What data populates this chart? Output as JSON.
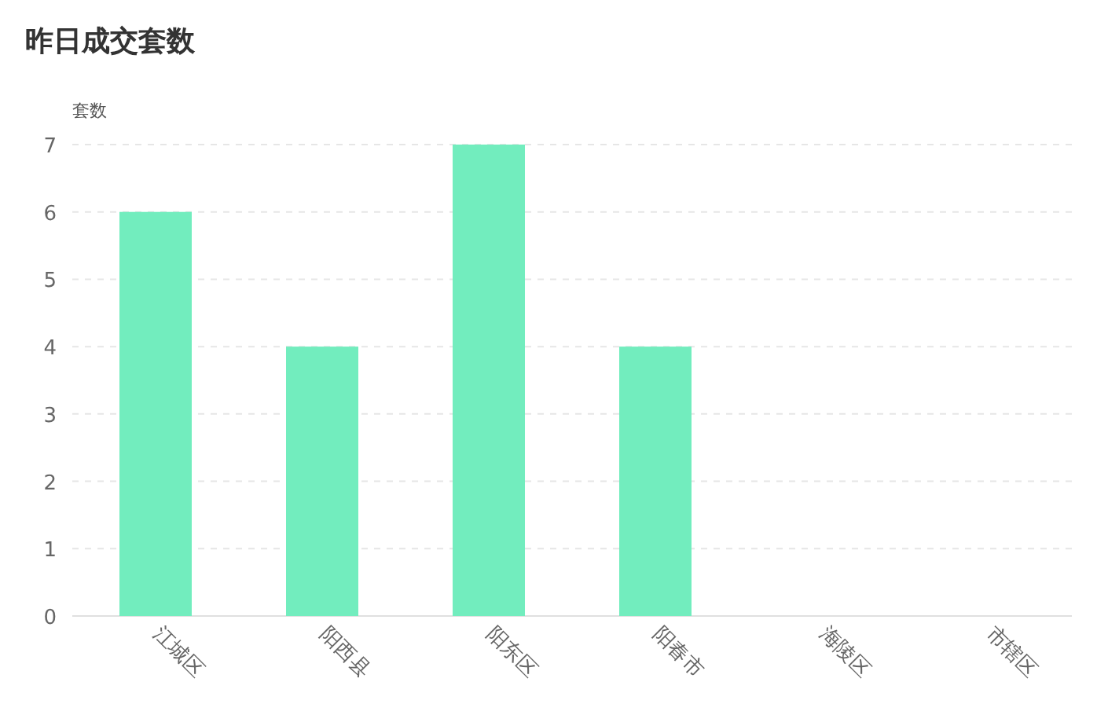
{
  "chart_data": {
    "type": "bar",
    "title": "昨日成交套数",
    "ylabel": "套数",
    "categories": [
      "江城区",
      "阳西县",
      "阳东区",
      "阳春市",
      "海陵区",
      "市辖区"
    ],
    "values": [
      6,
      4,
      7,
      4,
      0,
      0
    ],
    "color": "#72edbe",
    "ylim": [
      0,
      7
    ],
    "yticks": [
      0,
      1,
      2,
      3,
      4,
      5,
      6,
      7
    ],
    "grid": "y"
  }
}
